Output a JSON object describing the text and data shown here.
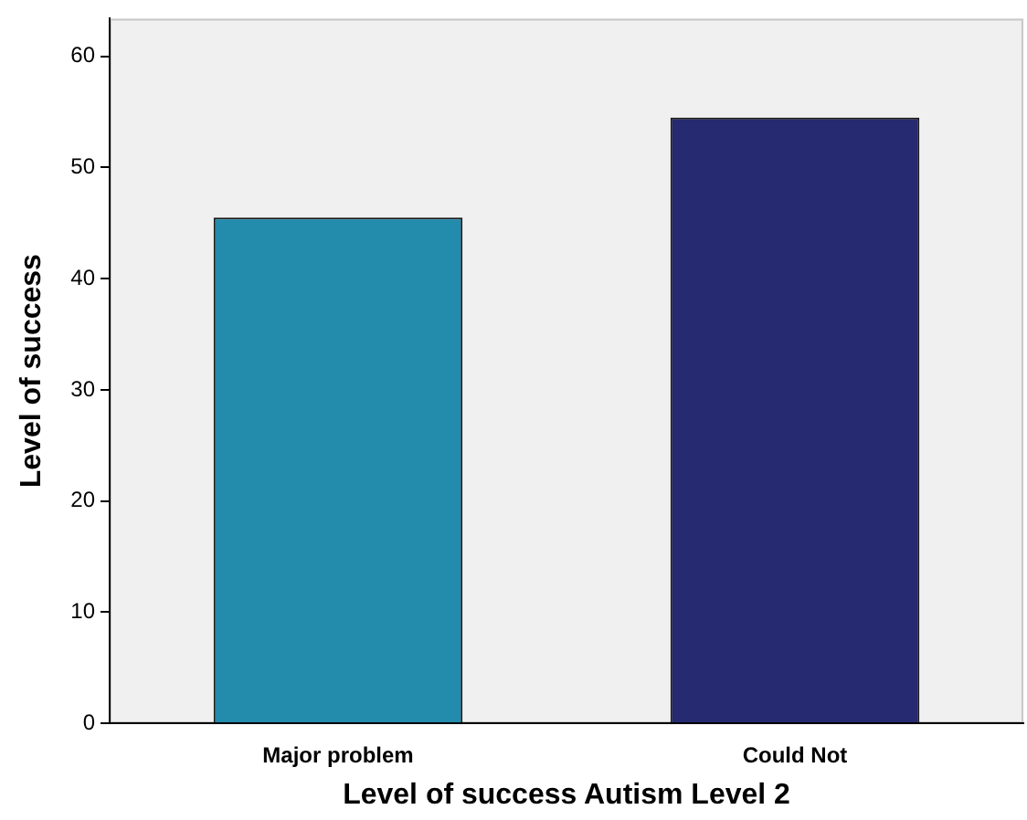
{
  "chart_data": {
    "type": "bar",
    "xlabel": "Level of success Autism Level 2",
    "ylabel": "Level of success",
    "categories": [
      "Major problem",
      "Could Not"
    ],
    "values": [
      45.5,
      54.5
    ],
    "colors": [
      "#238bac",
      "#262a70"
    ],
    "ylim": [
      0,
      63.4
    ],
    "yticks": [
      0,
      10,
      20,
      30,
      40,
      50,
      60
    ]
  }
}
